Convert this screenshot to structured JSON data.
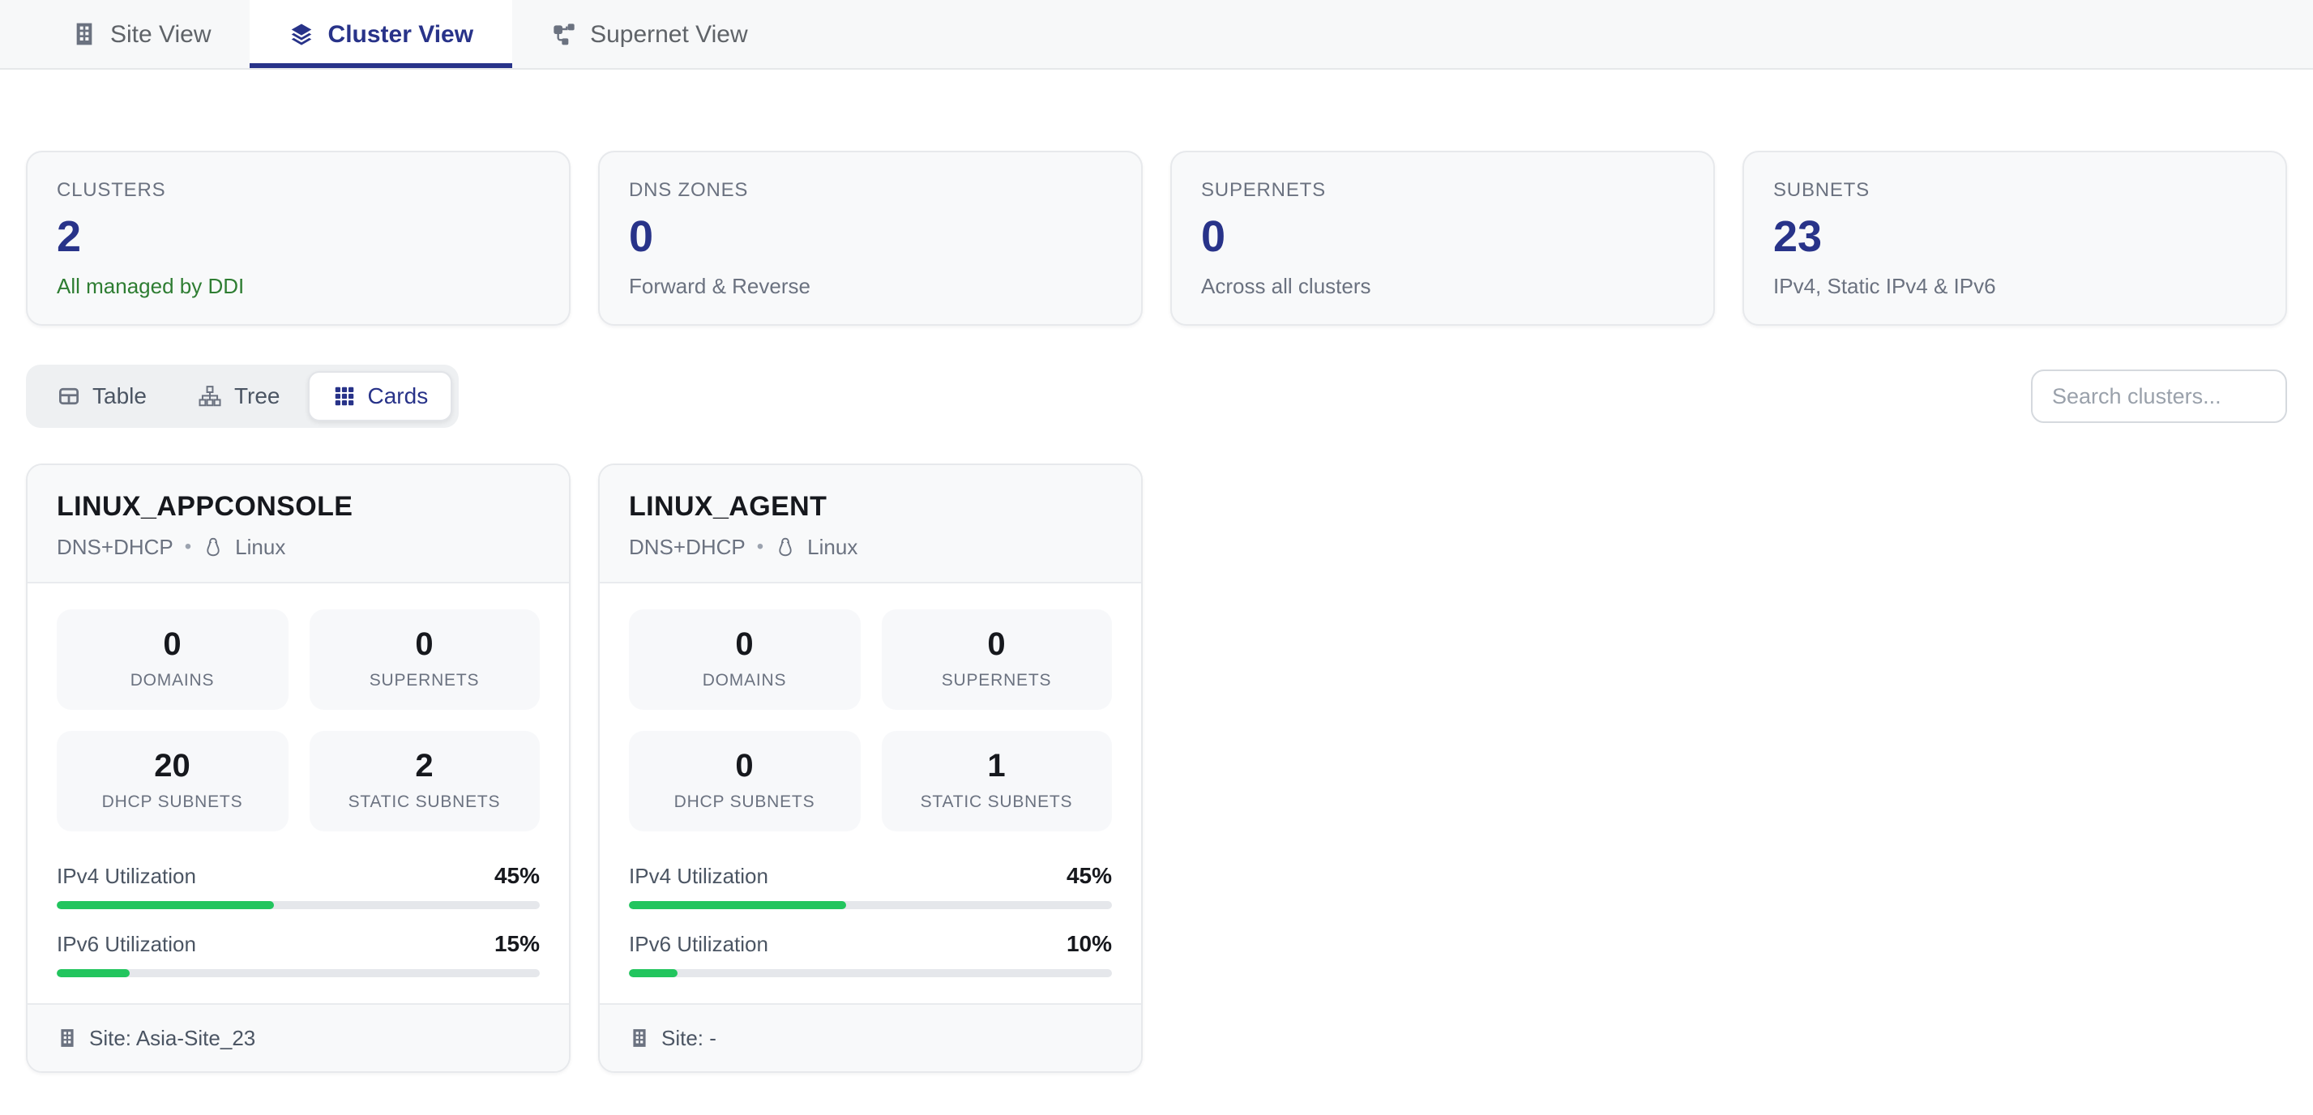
{
  "tabs": [
    {
      "label": "Site View",
      "icon": "building-icon",
      "active": false
    },
    {
      "label": "Cluster View",
      "icon": "layers-icon",
      "active": true
    },
    {
      "label": "Supernet View",
      "icon": "network-icon",
      "active": false
    }
  ],
  "summary_cards": [
    {
      "label": "CLUSTERS",
      "value": "2",
      "sub": "All managed by DDI"
    },
    {
      "label": "DNS ZONES",
      "value": "0",
      "sub": "Forward & Reverse"
    },
    {
      "label": "SUPERNETS",
      "value": "0",
      "sub": "Across all clusters"
    },
    {
      "label": "SUBNETS",
      "value": "23",
      "sub": "IPv4, Static IPv4 & IPv6"
    }
  ],
  "view_toggle": [
    {
      "label": "Table",
      "icon": "table-icon",
      "active": false
    },
    {
      "label": "Tree",
      "icon": "tree-icon",
      "active": false
    },
    {
      "label": "Cards",
      "icon": "grid-icon",
      "active": true
    }
  ],
  "search": {
    "placeholder": "Search clusters..."
  },
  "ui": {
    "dot": "•"
  },
  "clusters": [
    {
      "name": "LINUX_APPCONSOLE",
      "services": "DNS+DHCP",
      "os": "Linux",
      "os_icon": "penguin-icon",
      "stats": [
        {
          "value": "0",
          "label": "DOMAINS"
        },
        {
          "value": "0",
          "label": "SUPERNETS"
        },
        {
          "value": "20",
          "label": "DHCP SUBNETS"
        },
        {
          "value": "2",
          "label": "STATIC SUBNETS"
        }
      ],
      "utilization": [
        {
          "label": "IPv4 Utilization",
          "value": "45%",
          "percent": 45
        },
        {
          "label": "IPv6 Utilization",
          "value": "15%",
          "percent": 15
        }
      ],
      "site_text": "Site: Asia-Site_23"
    },
    {
      "name": "LINUX_AGENT",
      "services": "DNS+DHCP",
      "os": "Linux",
      "os_icon": "penguin-icon",
      "stats": [
        {
          "value": "0",
          "label": "DOMAINS"
        },
        {
          "value": "0",
          "label": "SUPERNETS"
        },
        {
          "value": "0",
          "label": "DHCP SUBNETS"
        },
        {
          "value": "1",
          "label": "STATIC SUBNETS"
        }
      ],
      "utilization": [
        {
          "label": "IPv4 Utilization",
          "value": "45%",
          "percent": 45
        },
        {
          "label": "IPv6 Utilization",
          "value": "10%",
          "percent": 10
        }
      ],
      "site_text": "Site: -"
    }
  ],
  "colors": {
    "accent": "#283389",
    "progress_green": "#22c55e",
    "green_text": "#2e7d32"
  }
}
